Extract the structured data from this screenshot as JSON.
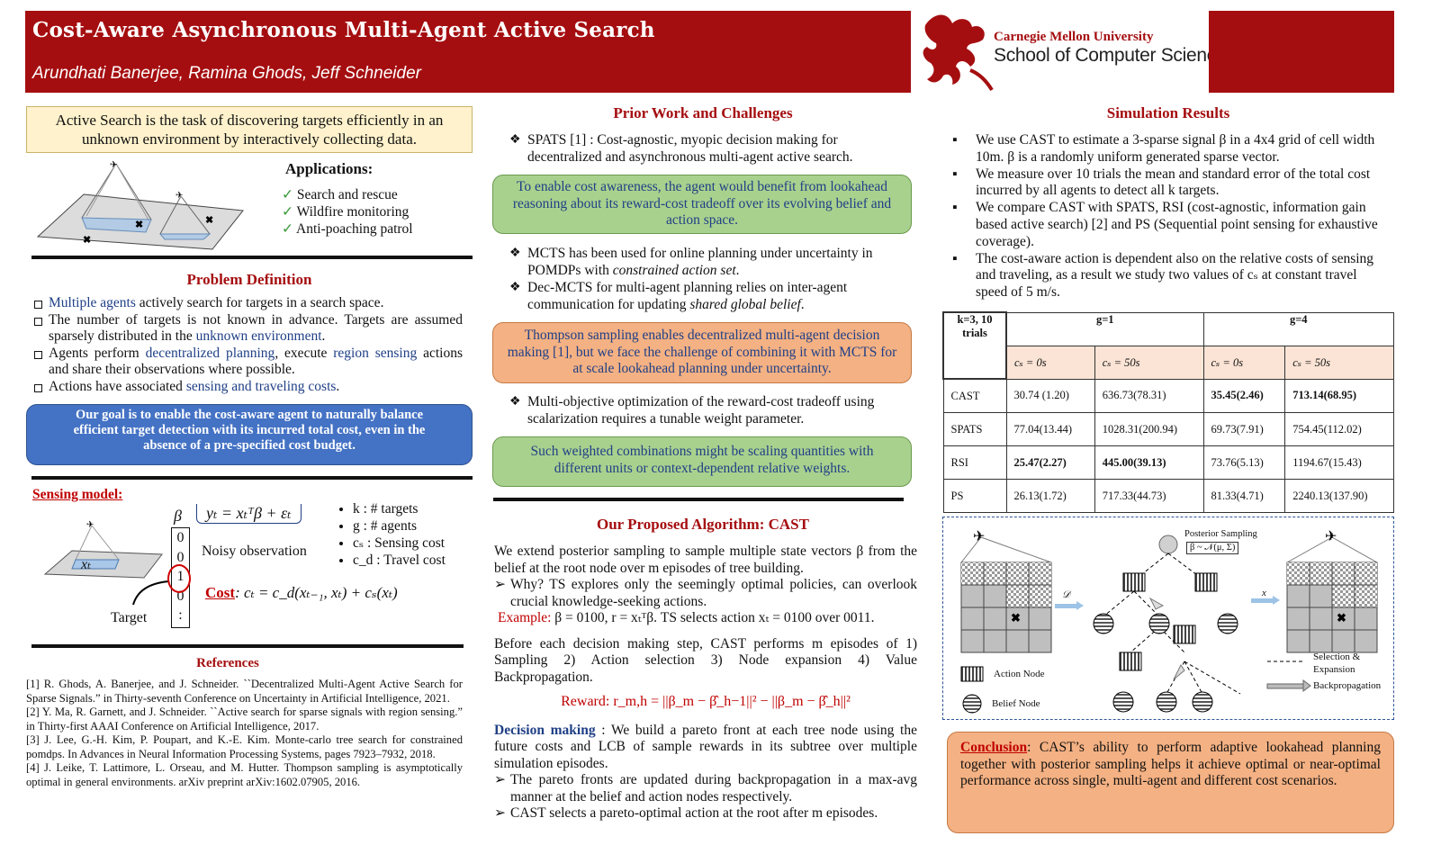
{
  "header": {
    "title": "Cost-Aware Asynchronous Multi-Agent Active Search",
    "authors": "Arundhati Banerjee, Ramina Ghods, Jeff Schneider",
    "university": "Carnegie Mellon University",
    "school": "School of Computer Science"
  },
  "intro": {
    "text": "Active Search is the task of discovering targets efficiently in an unknown environment by interactively collecting data.",
    "applications_title": "Applications:",
    "applications": [
      "Search and rescue",
      "Wildfire monitoring",
      "Anti-poaching patrol"
    ]
  },
  "problem": {
    "title": "Problem  Definition",
    "b1_a": "Multiple agents",
    "b1_b": " actively search for targets in a search space.",
    "b2_a": "The number of targets is not known in advance. Targets are assumed sparsely distributed in the ",
    "b2_b": "unknown environment",
    "b2_c": ".",
    "b3_a": "Agents perform ",
    "b3_b": "decentralized planning",
    "b3_c": ", execute ",
    "b3_d": "region sensing",
    "b3_e": " actions and share their observations where possible.",
    "b4_a": "Actions have associated ",
    "b4_b": "sensing and traveling costs",
    "b4_c": ".",
    "goal": "Our goal is to enable the cost-aware agent to naturally balance efficient target detection with its incurred total cost, even in the absence of a pre-specified cost budget."
  },
  "sensing": {
    "title": "Sensing model:",
    "beta": "β",
    "equation": "yₜ = xₜᵀβ + εₜ",
    "noisy": "Noisy observation",
    "xt": "xₜ",
    "target": "Target",
    "vector": [
      "0",
      "0",
      "1",
      "0",
      ":"
    ],
    "list": [
      "k : # targets",
      "g : # agents",
      "cₛ : Sensing cost",
      "c_d : Travel cost"
    ],
    "cost_label": "Cost",
    "cost_eq": ": cₜ = c_d(xₜ₋₁, xₜ) + cₛ(xₜ)"
  },
  "references": {
    "title": "References",
    "items": [
      "[1] R. Ghods, A. Banerjee, and J. Schneider. ``Decentralized Multi-Agent Active Search for Sparse Signals.” in Thirty-seventh Conference on Uncertainty in Artificial Intelligence, 2021.",
      "[2] Y. Ma, R. Garnett, and J. Schneider. ``Active search for sparse signals with region sensing.” in Thirty-first AAAI Conference on Artificial Intelligence, 2017.",
      "[3] J. Lee, G.-H. Kim, P. Poupart, and K.-E. Kim. Monte-carlo tree search for constrained pomdps. In Advances in Neural Information Processing Systems, pages 7923–7932, 2018.",
      "[4] J. Leike, T. Lattimore, L. Orseau, and M. Hutter. Thompson sampling is asymptotically optimal in general environments. arXiv preprint arXiv:1602.07905, 2016."
    ]
  },
  "prior": {
    "title": "Prior Work and Challenges",
    "p1": "SPATS [1] : Cost-agnostic, myopic decision making for decentralized and  asynchronous multi-agent active search.",
    "g1": "To enable cost awareness, the agent would benefit from lookahead reasoning about its reward-cost tradeoff over its evolving belief and action space.",
    "p2_a": "MCTS has been used for online planning under uncertainty in POMDPs with ",
    "p2_b": "constrained action set",
    "p2_c": ".",
    "p3_a": "Dec-MCTS for multi-agent planning relies on inter-agent communication for updating ",
    "p3_b": "shared global belief",
    "p3_c": ".",
    "o1": "Thompson sampling enables decentralized multi-agent decision making [1], but we face the challenge of combining it with MCTS for at scale lookahead planning under uncertainty.",
    "p4": "Multi-objective optimization of the reward-cost tradeoff using scalarization requires a tunable weight parameter.",
    "g2": "Such weighted combinations might be scaling quantities with different units or context-dependent relative weights."
  },
  "algo": {
    "title": "Our Proposed Algorithm: CAST",
    "t1": "We extend posterior sampling to sample multiple state vectors β from the belief at the root node over m episodes of tree building.",
    "t2": "Why? TS explores only the seemingly optimal policies, can overlook crucial knowledge-seeking actions.",
    "ex_label": "Example:",
    "ex_text": " β = 0100, r = xₜᵀβ. TS selects action xₜ = 0100 over 0011.",
    "t3": "Before each decision making step, CAST performs m episodes of 1) Sampling 2) Action selection 3) Node expansion 4) Value Backpropagation.",
    "reward": "Reward: r_m,h = ||β_m − β̂_h−1||² − ||β_m − β̂_h||²",
    "dm_label": "Decision making",
    "dm_text": " : We build a pareto front at each tree node using the future costs and LCB of sample rewards in its subtree over multiple simulation episodes.",
    "t4": "The pareto fronts are updated during backpropagation in a max-avg manner at the belief and action nodes respectively.",
    "t5": "CAST selects a pareto-optimal action at the root after m episodes."
  },
  "sim": {
    "title": "Simulation Results",
    "bullets": [
      "We use CAST to estimate a 3-sparse signal β in a 4x4 grid of cell width 10m. β is a randomly uniform generated sparse vector.",
      "We measure over 10 trials the mean and standard error of the total cost incurred by all agents to detect all k targets.",
      "We compare CAST with SPATS, RSI (cost-agnostic, information gain based active search) [2] and PS (Sequential point sensing for exhaustive coverage).",
      "The cost-aware action is dependent also on the relative costs of sensing and traveling, as a result we study two values of cₛ at constant travel speed of 5 m/s."
    ]
  },
  "table": {
    "corner": "k=3, 10 trials",
    "g1": "g=1",
    "g4": "g=4",
    "sub": [
      "cₛ = 0s",
      "cₛ = 50s",
      "cₛ = 0s",
      "cₛ = 50s"
    ],
    "rows": [
      {
        "name": "CAST",
        "v": [
          "30.74 (1.20)",
          "636.73(78.31)",
          "35.45(2.46)",
          "713.14(68.95)"
        ]
      },
      {
        "name": "SPATS",
        "v": [
          "77.04(13.44)",
          "1028.31(200.94)",
          "69.73(7.91)",
          "754.45(112.02)"
        ]
      },
      {
        "name": "RSI",
        "v": [
          "25.47(2.27)",
          "445.00(39.13)",
          "73.76(5.13)",
          "1194.67(15.43)"
        ]
      },
      {
        "name": "PS",
        "v": [
          "26.13(1.72)",
          "717.33(44.73)",
          "81.33(4.71)",
          "2240.13(137.90)"
        ]
      }
    ]
  },
  "diagram": {
    "posterior": "Posterior Sampling",
    "posterior_eq": "β ~ 𝒩(μ, Σ)",
    "d_label": "𝒟",
    "x_label": "x",
    "action_node": "Action Node",
    "belief_node": "Belief Node",
    "selection": "Selection & Expansion",
    "backprop": "Backpropagation"
  },
  "conclusion": {
    "label": "Conclusion",
    "text": ": CAST’s ability to perform adaptive lookahead planning together with posterior sampling helps it achieve optimal or near-optimal performance across single, multi-agent and different cost scenarios."
  }
}
